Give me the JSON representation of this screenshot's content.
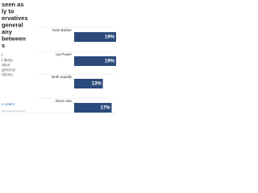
{
  "header": {
    "title_lines": [
      "seen as",
      "ly to",
      "ervatives",
      "general",
      "any",
      "between",
      "s"
    ],
    "subtitle_lines": [
      "f",
      "t likely",
      "ative",
      "general",
      "olicies"
    ],
    "footer": "n voters",
    "source": "Pew Research Center"
  },
  "chart_data": {
    "type": "bar",
    "orientation": "horizontal",
    "categories": [
      "Note Barber",
      "Up Power",
      "Both equally",
      "Short vote"
    ],
    "values": [
      19,
      19,
      13,
      17
    ],
    "value_labels": [
      "19%",
      "19%",
      "13%",
      "17%"
    ],
    "color": "#2b4a7c",
    "xlim": [
      0,
      19
    ]
  }
}
